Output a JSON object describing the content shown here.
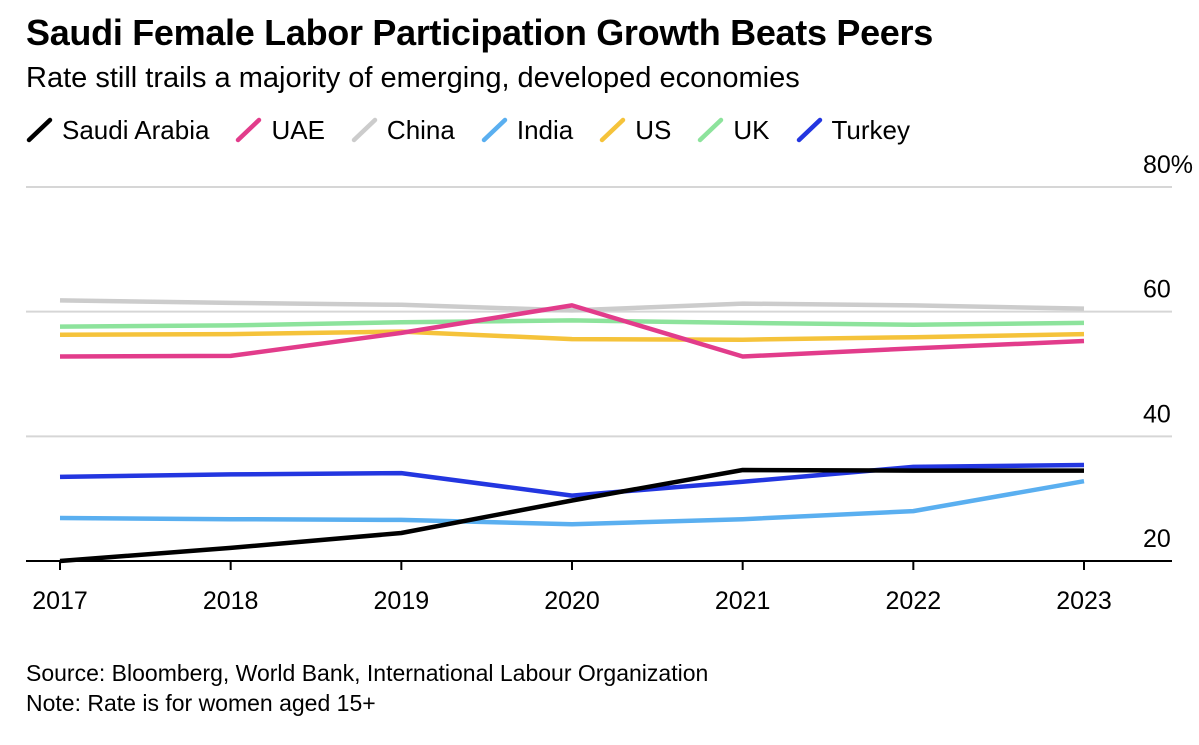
{
  "chart_data": {
    "type": "line",
    "title": "Saudi Female Labor Participation Growth Beats Peers",
    "subtitle": "Rate still trails a majority of emerging, developed economies",
    "x": [
      2017,
      2018,
      2019,
      2020,
      2021,
      2022,
      2023
    ],
    "x_tick_labels": [
      "2017",
      "2018",
      "2019",
      "2020",
      "2021",
      "2022",
      "2023"
    ],
    "ylim": [
      20,
      80
    ],
    "y_ticks": [
      20,
      40,
      60,
      80
    ],
    "y_tick_labels": [
      "20",
      "40",
      "60",
      "80%"
    ],
    "grid": true,
    "legend_position": "top",
    "series": [
      {
        "name": "China",
        "color": "#cccccc",
        "values": [
          61.8,
          61.4,
          61.1,
          60.2,
          61.3,
          61.0,
          60.5
        ]
      },
      {
        "name": "UK",
        "color": "#8de39c",
        "values": [
          57.6,
          57.8,
          58.3,
          58.6,
          58.2,
          57.9,
          58.2
        ]
      },
      {
        "name": "US",
        "color": "#f5c33b",
        "values": [
          56.3,
          56.4,
          56.8,
          55.6,
          55.5,
          55.9,
          56.4
        ]
      },
      {
        "name": "UAE",
        "color": "#e23c8b",
        "values": [
          52.8,
          52.9,
          56.6,
          61.0,
          52.8,
          54.1,
          55.3
        ]
      },
      {
        "name": "India",
        "color": "#5aaff0",
        "values": [
          26.9,
          26.7,
          26.6,
          25.9,
          26.7,
          28.0,
          32.8
        ]
      },
      {
        "name": "Turkey",
        "color": "#2336e0",
        "values": [
          33.5,
          33.9,
          34.1,
          30.5,
          32.7,
          35.1,
          35.4
        ]
      },
      {
        "name": "Saudi Arabia",
        "color": "#000000",
        "values": [
          20.0,
          22.1,
          24.5,
          29.7,
          34.6,
          34.5,
          34.5
        ]
      }
    ],
    "source": "Source: Bloomberg, World Bank, International Labour Organization",
    "note": "Note: Rate is for women aged 15+"
  },
  "legend": [
    {
      "name": "Saudi Arabia",
      "color": "#000000"
    },
    {
      "name": "UAE",
      "color": "#e23c8b"
    },
    {
      "name": "China",
      "color": "#cccccc"
    },
    {
      "name": "India",
      "color": "#5aaff0"
    },
    {
      "name": "US",
      "color": "#f5c33b"
    },
    {
      "name": "UK",
      "color": "#8de39c"
    },
    {
      "name": "Turkey",
      "color": "#2336e0"
    }
  ]
}
